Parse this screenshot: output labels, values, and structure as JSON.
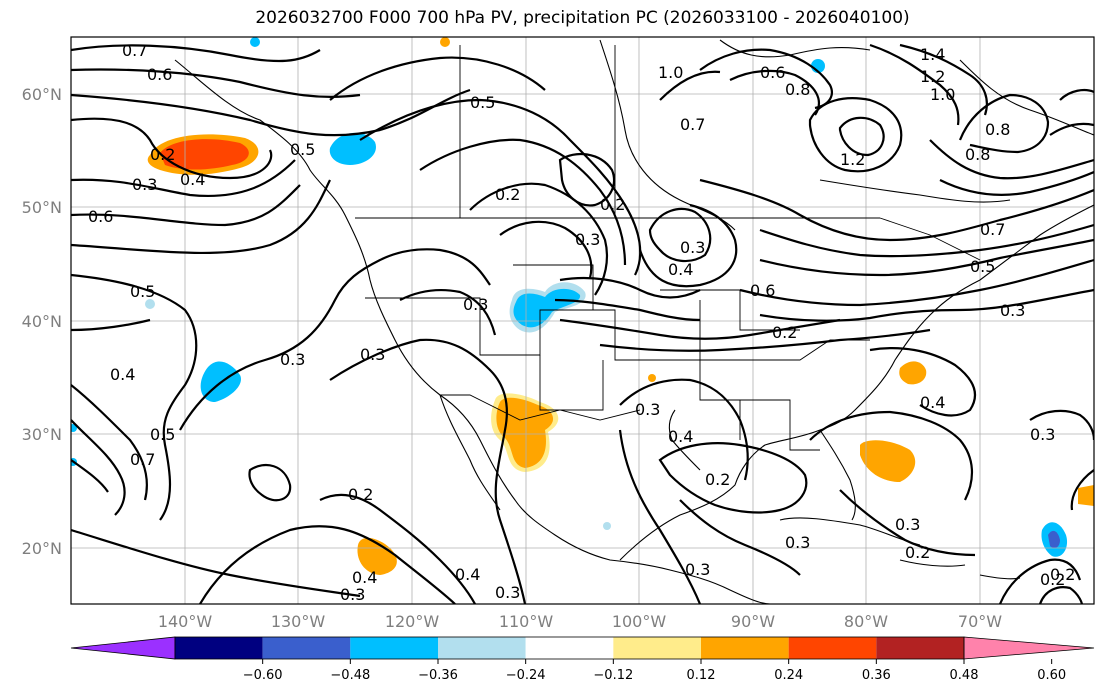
{
  "title": "2026032700 F000 700 hPa PV, precipitation PC (2026033100 - 2026040100)",
  "lat_labels": [
    "60°N",
    "50°N",
    "40°N",
    "30°N",
    "20°N"
  ],
  "lon_labels": [
    "140°W",
    "130°W",
    "120°W",
    "110°W",
    "100°W",
    "90°W",
    "80°W",
    "70°W"
  ],
  "colorbar": {
    "ticks": [
      "−0.60",
      "−0.48",
      "−0.36",
      "−0.24",
      "−0.12",
      "0.12",
      "0.24",
      "0.36",
      "0.48",
      "0.60"
    ],
    "colors": [
      "#9b30ff",
      "#000080",
      "#3a5fcd",
      "#00bfff",
      "#b2dfee",
      "#ffffff",
      "#ffec8b",
      "#ffa500",
      "#ff4500",
      "#b22222",
      "#ff82ab"
    ]
  },
  "contour_labels": [
    "0.7",
    "0.6",
    "0.6",
    "0.2",
    "0.3",
    "0.4",
    "0.5",
    "0.5",
    "0.5",
    "0.5",
    "0.4",
    "0.3",
    "0.2",
    "0.3",
    "0.3",
    "0.7",
    "0.2",
    "0.3",
    "0.4",
    "0.3",
    "0.2",
    "0.7",
    "0.6",
    "1.0",
    "0.8",
    "1.2",
    "1.4",
    "1.0",
    "1.2",
    "0.8",
    "0.8",
    "0.5",
    "0.3",
    "0.6",
    "0.2",
    "0.3",
    "0.4",
    "0.2",
    "0.3",
    "0.2",
    "0.3",
    "0.2",
    "0.3",
    "0.4",
    "0.3",
    "0.5",
    "0.7",
    "0.6",
    "0.4",
    "0.3",
    "0.2"
  ],
  "palette": {
    "pc_blue": "#00bfff",
    "pc_lightblue": "#b2dfee",
    "pc_darkblue": "#3a5fcd",
    "pc_yellow": "#ffec8b",
    "pc_orange": "#ffa500",
    "pc_red": "#ff4500"
  }
}
